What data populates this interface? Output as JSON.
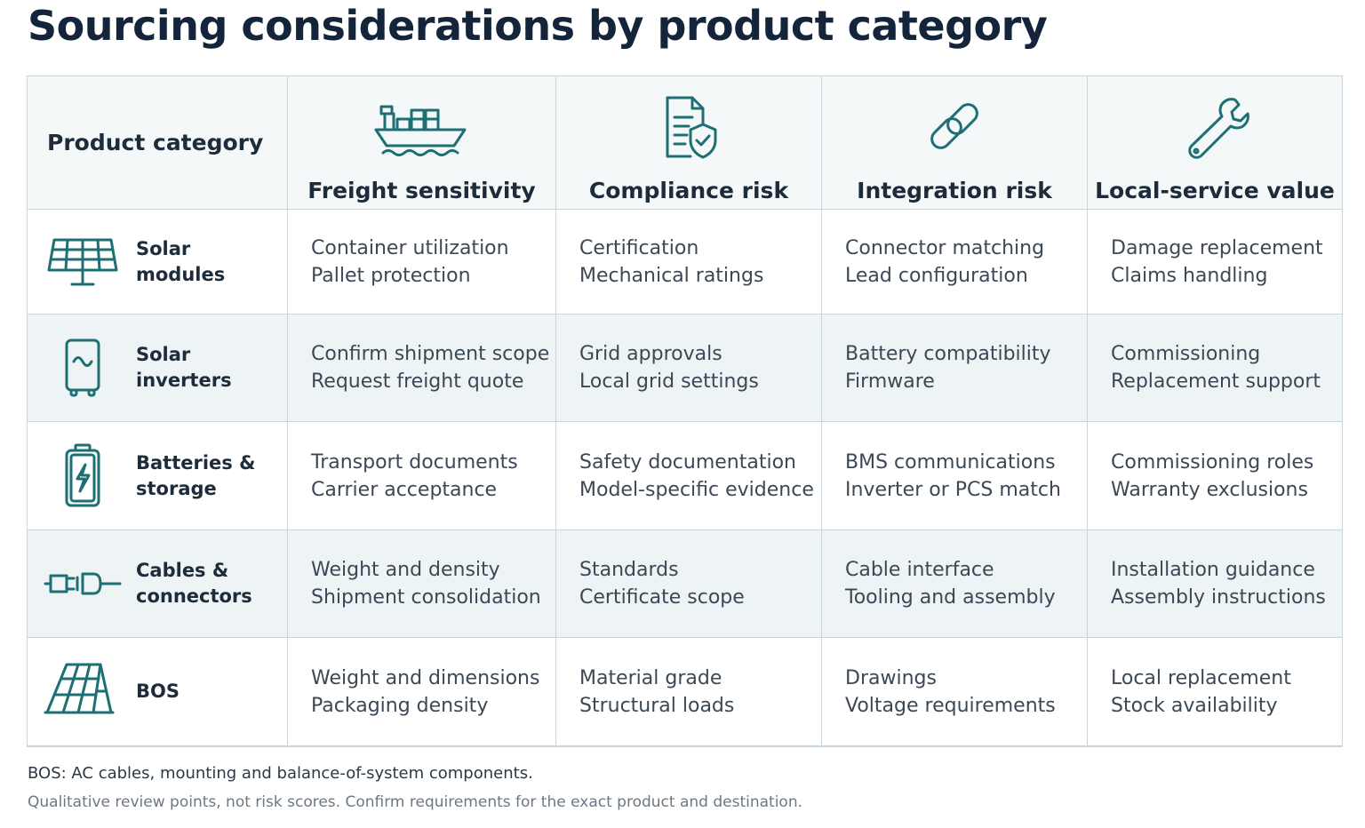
{
  "title": "Sourcing considerations by product category",
  "colors": {
    "accent": "#1d6f73",
    "row_shade": "#eef4f5",
    "grid_line": "#c9d4dc"
  },
  "header": {
    "category_label": "Product category",
    "columns": [
      {
        "label": "Freight sensitivity",
        "icon": "cargo-ship-icon"
      },
      {
        "label": "Compliance risk",
        "icon": "document-shield-icon"
      },
      {
        "label": "Integration risk",
        "icon": "chain-link-icon"
      },
      {
        "label": "Local-service value",
        "icon": "wrench-icon"
      }
    ]
  },
  "rows": [
    {
      "category": "Solar modules",
      "icon": "solar-panel-icon",
      "cells": [
        [
          "Container utilization",
          "Pallet protection"
        ],
        [
          "Certification",
          "Mechanical ratings"
        ],
        [
          "Connector matching",
          "Lead configuration"
        ],
        [
          "Damage replacement",
          "Claims handling"
        ]
      ]
    },
    {
      "category": "Solar inverters",
      "icon": "inverter-icon",
      "cells": [
        [
          "Confirm shipment scope",
          "Request freight quote"
        ],
        [
          "Grid approvals",
          "Local grid settings"
        ],
        [
          "Battery compatibility",
          "Firmware"
        ],
        [
          "Commissioning",
          "Replacement support"
        ]
      ]
    },
    {
      "category": "Batteries & storage",
      "icon": "battery-icon",
      "cells": [
        [
          "Transport documents",
          "Carrier acceptance"
        ],
        [
          "Safety documentation",
          "Model-specific evidence"
        ],
        [
          "BMS communications",
          "Inverter or PCS match"
        ],
        [
          "Commissioning roles",
          "Warranty exclusions"
        ]
      ]
    },
    {
      "category": "Cables & connectors",
      "icon": "connector-plug-icon",
      "cells": [
        [
          "Weight and density",
          "Shipment consolidation"
        ],
        [
          "Standards",
          "Certificate scope"
        ],
        [
          "Cable interface",
          "Tooling and assembly"
        ],
        [
          "Installation guidance",
          "Assembly instructions"
        ]
      ]
    },
    {
      "category": "BOS",
      "icon": "mounted-panel-icon",
      "cells": [
        [
          "Weight and dimensions",
          "Packaging density"
        ],
        [
          "Material grade",
          "Structural loads"
        ],
        [
          "Drawings",
          "Voltage requirements"
        ],
        [
          "Local replacement",
          "Stock availability"
        ]
      ]
    }
  ],
  "footnotes": {
    "definition": "BOS: AC cables, mounting and balance-of-system components.",
    "disclaimer": "Qualitative review points, not risk scores. Confirm requirements for the exact product and destination."
  }
}
